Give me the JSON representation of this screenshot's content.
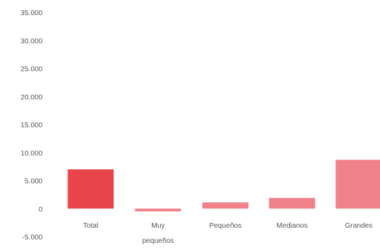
{
  "chart_data": {
    "type": "bar",
    "title": "",
    "xlabel": "",
    "ylabel": "",
    "categories": [
      "Total",
      "Muy pequeños",
      "Pequeños",
      "Medianos",
      "Grandes"
    ],
    "category_lines": [
      [
        "Total"
      ],
      [
        "Muy",
        "pequeños"
      ],
      [
        "Pequeños"
      ],
      [
        "Medianos"
      ],
      [
        "Grandes"
      ]
    ],
    "values": [
      7000,
      -500,
      1100,
      1900,
      8700
    ],
    "ylim": [
      -5000,
      35000
    ],
    "yticks": [
      35000,
      30000,
      25000,
      20000,
      15000,
      10000,
      5000,
      0,
      -5000
    ],
    "ytick_labels": [
      "35.000",
      "30.000",
      "25.000",
      "20.000",
      "15.000",
      "10.000",
      "5.000",
      "0",
      "-5.000"
    ],
    "bar_colors": [
      "#e8454a",
      "#f0808a",
      "#f0808a",
      "#f0808a",
      "#f0808a"
    ],
    "grid": false,
    "legend": false
  }
}
